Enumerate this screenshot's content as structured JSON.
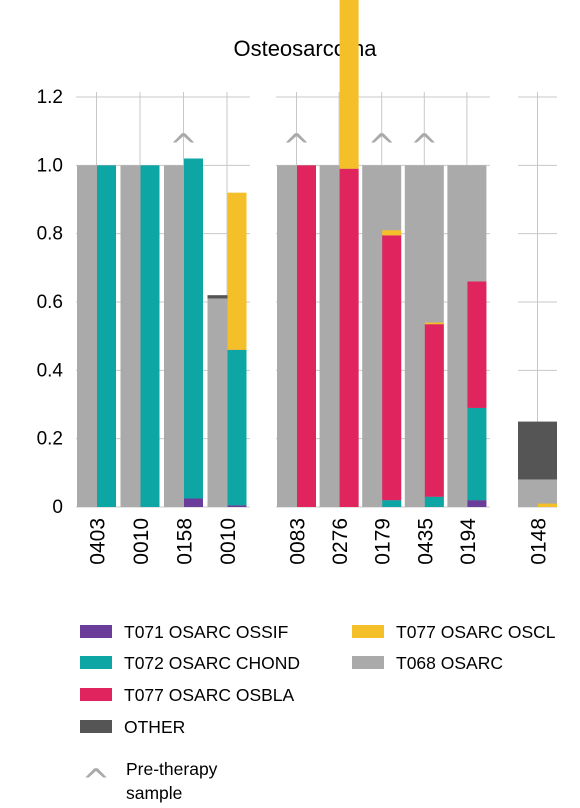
{
  "chart_data": {
    "type": "bar",
    "stacked": true,
    "title": "Osteosarcoma",
    "ylim": [
      0,
      1.2
    ],
    "yticks": [
      "0",
      "0.2",
      "0.4",
      "0.6",
      "0.8",
      "1.0",
      "1.2"
    ],
    "grid": true,
    "legend_position": "bottom",
    "pre_therapy_caret": "^",
    "groups": [
      {
        "name": "",
        "bars": [
          {
            "label": "0403",
            "pre_therapy": false,
            "segments": {
              "T071 OSARC OSSIF": 0,
              "T072 OSARC CHOND": 1.0,
              "T077 OSARC OSBLA": 0,
              "OTHER": 0,
              "T077 OSARC OSCL": 0,
              "T068 OSARC": 1.0
            }
          },
          {
            "label": "0010",
            "pre_therapy": false,
            "segments": {
              "T071 OSARC OSSIF": 0,
              "T072 OSARC CHOND": 1.0,
              "T077 OSARC OSBLA": 0,
              "OTHER": 0,
              "T077 OSARC OSCL": 0,
              "T068 OSARC": 1.0
            }
          },
          {
            "label": "0158",
            "pre_therapy": true,
            "segments": {
              "T071 OSARC OSSIF": 0.025,
              "T072 OSARC CHOND": 0.995,
              "T077 OSARC OSBLA": 0,
              "OTHER": 0,
              "T077 OSARC OSCL": 0,
              "T068 OSARC": 1.0
            }
          },
          {
            "label": "0010",
            "pre_therapy": false,
            "segments": {
              "T071 OSARC OSSIF": 0.005,
              "T072 OSARC CHOND": 0.455,
              "T077 OSARC OSBLA": 0,
              "OTHER": 0.62,
              "T077 OSARC OSCL": 0.46,
              "T068 OSARC": 0.61
            }
          }
        ]
      },
      {
        "name": "",
        "bars": [
          {
            "label": "0083",
            "pre_therapy": true,
            "segments": {
              "T071 OSARC OSSIF": 0,
              "T072 OSARC CHOND": 0,
              "T077 OSARC OSBLA": 1.0,
              "OTHER": 0,
              "T077 OSARC OSCL": 0,
              "T068 OSARC": 1.0
            }
          },
          {
            "label": "0276",
            "pre_therapy": false,
            "segments": {
              "T071 OSARC OSSIF": 0,
              "T072 OSARC CHOND": 0,
              "T077 OSARC OSBLA": 0.99,
              "OTHER": 0,
              "T077 OSARC OSCL": 0.995,
              "T068 OSARC": 1.0
            }
          },
          {
            "label": "0179",
            "pre_therapy": true,
            "segments": {
              "T071 OSARC OSSIF": 0,
              "T072 OSARC CHOND": 0.02,
              "T077 OSARC OSBLA": 0.775,
              "OTHER": 0,
              "T077 OSARC OSCL": 0.015,
              "T068 OSARC": 1.0
            }
          },
          {
            "label": "0435",
            "pre_therapy": true,
            "segments": {
              "T071 OSARC OSSIF": 0,
              "T072 OSARC CHOND": 0.03,
              "T077 OSARC OSBLA": 0.505,
              "OTHER": 0,
              "T077 OSARC OSCL": 0.005,
              "T068 OSARC": 1.0
            }
          },
          {
            "label": "0194",
            "pre_therapy": false,
            "segments": {
              "T071 OSARC OSSIF": 0.02,
              "T072 OSARC CHOND": 0.27,
              "T077 OSARC OSBLA": 0.37,
              "OTHER": 0,
              "T077 OSARC OSCL": 0,
              "T068 OSARC": 1.0
            }
          }
        ]
      },
      {
        "name": "",
        "bars": [
          {
            "label": "0148",
            "pre_therapy": false,
            "segments": {
              "T071 OSARC OSSIF": 0,
              "T072 OSARC CHOND": 0,
              "T077 OSARC OSBLA": 0,
              "OTHER": 0.25,
              "T077 OSARC OSCL": 0.01,
              "T068 OSARC": 0.08
            }
          }
        ]
      }
    ],
    "legend": [
      {
        "name": "T071 OSARC OSSIF",
        "color": "#6a3d9a"
      },
      {
        "name": "T077 OSARC OSCL",
        "color": "#f5bf2a"
      },
      {
        "name": "T072 OSARC CHOND",
        "color": "#0ea5a5"
      },
      {
        "name": "T068 OSARC",
        "color": "#aaaaaa"
      },
      {
        "name": "T077 OSARC OSBLA",
        "color": "#e0245e"
      },
      {
        "name": "OTHER",
        "color": "#555555"
      }
    ],
    "pre_therapy_legend": "Pre-therapy sample"
  }
}
